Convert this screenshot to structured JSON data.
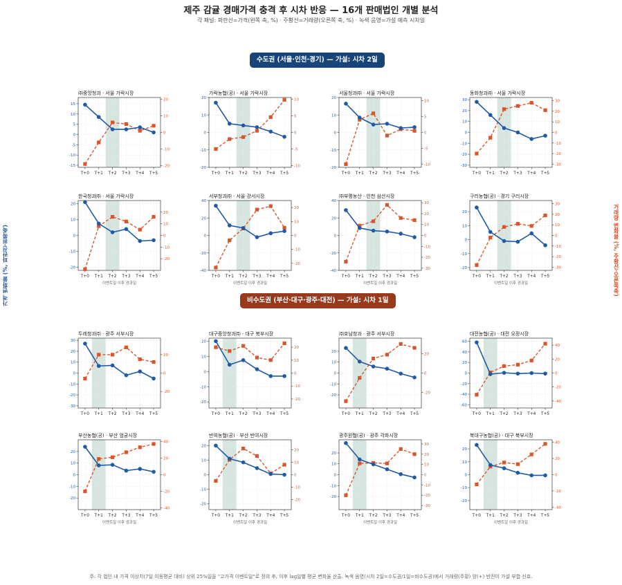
{
  "title": "제주 감귤 경매가격 충격 후 시차 반응 — 16개 판매법인 개별 분석",
  "subtitle": "각 패널: 파란선=가격(왼쪽 축, %) · 주황선=거래량(오른쪽 축, %) · 녹색 음영=가설 예측 시차일",
  "banners": {
    "metro": "수도권 (서울·인천·경기) — 가설: 시차 2일",
    "nonmetro": "비수도권 (부산·대구·광주·대전) — 가설: 시차 1일"
  },
  "left_axis_label": "가격 변화율 (%, 파란선·왼쪽축)",
  "right_axis_label": "거래량 변화율 (%, 주황선·오른쪽축)",
  "xlabel": "이벤트일 이후 경과일",
  "footnote": "주: 각 법인 내 가격 이상치(7일 이동평균 대비) 상위 25%일을 \"고가격 이벤트일\"로 정의 후, 이후 lag일별 평균 변화율 산출. 녹색 음영(시차 2일=수도권/1일=비수도권)에서 거래량(주황) 양(+) 반전이 가설 부합 신호.",
  "colors": {
    "price": "#1f5aa6",
    "volume": "#d9552a",
    "shade": "#cfe0d9"
  },
  "chart_data": {
    "type": "line",
    "x": [
      "T+0",
      "T+1",
      "T+2",
      "T+3",
      "T+4",
      "T+5"
    ],
    "grid": true,
    "panels": [
      {
        "title": "㈜중앙청과 · 서울 가락시장",
        "shade_lag": 2,
        "xlabel_shown": false,
        "left": {
          "range": [
            -16,
            18
          ],
          "ticks": [
            -15,
            -10,
            -5,
            0,
            5,
            10,
            15
          ]
        },
        "right": {
          "range": [
            -21,
            21
          ],
          "ticks": [
            -20,
            -10,
            0,
            10,
            20
          ]
        },
        "price": [
          14.5,
          8.5,
          2.5,
          2.5,
          3.5,
          1.0
        ],
        "volume": [
          -19,
          -6,
          6,
          5,
          1,
          4
        ]
      },
      {
        "title": "가락농협(공) · 서울 가락시장",
        "shade_lag": 2,
        "xlabel_shown": false,
        "left": {
          "range": [
            -20,
            20
          ],
          "ticks": [
            -20,
            -10,
            0,
            10,
            20
          ]
        },
        "right": {
          "range": [
            -10.5,
            10.5
          ],
          "ticks": [
            -10,
            -5,
            0,
            5,
            10
          ]
        },
        "price": [
          17,
          5,
          4,
          3,
          0.5,
          -2.5
        ],
        "volume": [
          -5,
          -2,
          -1.4,
          0.5,
          4.6,
          9.8
        ]
      },
      {
        "title": "서울청과㈜ · 서울 가락시장",
        "shade_lag": 2,
        "xlabel_shown": false,
        "left": {
          "range": [
            -20,
            20
          ],
          "ticks": [
            -20,
            -10,
            0,
            10,
            20
          ]
        },
        "right": {
          "range": [
            -11,
            11
          ],
          "ticks": [
            -10,
            -5,
            0,
            5,
            10
          ]
        },
        "price": [
          16.5,
          8.5,
          4.5,
          5,
          2.5,
          3
        ],
        "volume": [
          -10,
          4,
          6,
          -1,
          1,
          0.5
        ]
      },
      {
        "title": "동화청과㈜ · 서울 가락시장",
        "shade_lag": 2,
        "xlabel_shown": false,
        "left": {
          "range": [
            -32,
            32
          ],
          "ticks": [
            -30,
            -20,
            -10,
            0,
            10,
            20,
            30
          ]
        },
        "right": {
          "range": [
            -33,
            33
          ],
          "ticks": [
            -30,
            -20,
            -10,
            0,
            10,
            20,
            30
          ]
        },
        "price": [
          28,
          16,
          4,
          0,
          -6,
          -3
        ],
        "volume": [
          -20,
          -5,
          22,
          25,
          28,
          21
        ]
      },
      {
        "title": "한국청과㈜ · 서울 가락시장",
        "shade_lag": 2,
        "xlabel_shown": true,
        "left": {
          "range": [
            -22,
            22
          ],
          "ticks": [
            -20,
            -10,
            0,
            10,
            20
          ]
        },
        "right": {
          "range": [
            -30,
            30
          ],
          "ticks": [
            -20,
            -10,
            0,
            10,
            20
          ]
        },
        "price": [
          21,
          7.5,
          2,
          4,
          -3.5,
          -3
        ],
        "volume": [
          -29,
          8,
          16,
          12,
          5,
          16
        ]
      },
      {
        "title": "서부청과㈜ · 서울 강서시장",
        "shade_lag": 2,
        "xlabel_shown": true,
        "left": {
          "range": [
            -40,
            40
          ],
          "ticks": [
            -40,
            -20,
            0,
            20,
            40
          ]
        },
        "right": {
          "range": [
            -25,
            25
          ],
          "ticks": [
            -20,
            -10,
            0,
            10,
            20
          ]
        },
        "price": [
          34,
          11.5,
          8.5,
          -2,
          2.5,
          5
        ],
        "volume": [
          -23,
          -3.5,
          5,
          18.5,
          21,
          5.5
        ]
      },
      {
        "title": "㈜부평농산 · 인천 삼산시장",
        "shade_lag": 2,
        "xlabel_shown": true,
        "left": {
          "range": [
            -40,
            40
          ],
          "ticks": [
            -40,
            -20,
            0,
            20,
            40
          ]
        },
        "right": {
          "range": [
            -32,
            32
          ],
          "ticks": [
            -30,
            -20,
            -10,
            0,
            10,
            20,
            30
          ]
        },
        "price": [
          29,
          8.5,
          5.5,
          4.5,
          2,
          -2
        ],
        "volume": [
          -24,
          9,
          13,
          28,
          16,
          14
        ]
      },
      {
        "title": "구리농협(공) · 경기 구리시장",
        "shade_lag": 2,
        "xlabel_shown": true,
        "left": {
          "range": [
            -22,
            28
          ],
          "ticks": [
            -20,
            -10,
            0,
            10,
            20
          ]
        },
        "right": {
          "range": [
            -33,
            33
          ],
          "ticks": [
            -30,
            -20,
            -10,
            0,
            10,
            20,
            30
          ]
        },
        "price": [
          23,
          5.5,
          -1,
          -1.5,
          4.5,
          -4
        ],
        "volume": [
          -28,
          -2,
          8,
          11,
          9,
          19
        ]
      },
      {
        "title": "두레청과㈜ · 광주 서부시장",
        "shade_lag": 1,
        "xlabel_shown": false,
        "left": {
          "range": [
            -32,
            32
          ],
          "ticks": [
            -30,
            -20,
            -10,
            0,
            10,
            20,
            30
          ]
        },
        "right": {
          "range": [
            -38,
            38
          ],
          "ticks": [
            -20,
            0,
            20
          ]
        },
        "price": [
          27,
          6.5,
          7,
          -2,
          1.5,
          -5
        ],
        "volume": [
          -6,
          20,
          20,
          28,
          15,
          12
        ]
      },
      {
        "title": "대구중앙청과㈜ · 대구 북부시장",
        "shade_lag": 1,
        "xlabel_shown": false,
        "left": {
          "range": [
            -24,
            22
          ],
          "ticks": [
            -20,
            -10,
            0,
            10,
            20
          ]
        },
        "right": {
          "range": [
            -27,
            27
          ],
          "ticks": [
            -20,
            -10,
            0,
            10,
            20
          ]
        },
        "price": [
          20,
          4.5,
          7.5,
          1.5,
          -3,
          -3
        ],
        "volume": [
          20,
          17,
          21,
          12,
          10,
          23
        ]
      },
      {
        "title": "㈜호남청과 · 광주 서부시장",
        "shade_lag": 1,
        "xlabel_shown": false,
        "left": {
          "range": [
            -32,
            32
          ],
          "ticks": [
            -20,
            -10,
            0,
            10,
            20
          ]
        },
        "right": {
          "range": [
            -36,
            36
          ],
          "ticks": [
            -20,
            0,
            20
          ]
        },
        "price": [
          23,
          10.5,
          6,
          4,
          -0.5,
          -4
        ],
        "volume": [
          -29,
          -5,
          15,
          19,
          30,
          26
        ]
      },
      {
        "title": "대전농협(공) · 대전 오정시장",
        "shade_lag": 1,
        "xlabel_shown": false,
        "left": {
          "range": [
            -66,
            66
          ],
          "ticks": [
            -60,
            -40,
            -20,
            0,
            20,
            40,
            60
          ]
        },
        "right": {
          "range": [
            -50,
            50
          ],
          "ticks": [
            -40,
            -20,
            0,
            20,
            40
          ]
        },
        "price": [
          58,
          -2,
          0.5,
          -1,
          0,
          -1
        ],
        "volume": [
          -31,
          1,
          10,
          12,
          18,
          42
        ]
      },
      {
        "title": "부산농협(공) · 부산 엄궁시장",
        "shade_lag": 1,
        "xlabel_shown": true,
        "left": {
          "range": [
            -30,
            30
          ],
          "ticks": [
            -20,
            -10,
            0,
            10,
            20
          ]
        },
        "right": {
          "range": [
            -42,
            42
          ],
          "ticks": [
            -40,
            -20,
            0,
            20,
            40
          ]
        },
        "price": [
          24,
          8,
          8.5,
          3.5,
          5,
          2.5
        ],
        "volume": [
          -20,
          19,
          21,
          27,
          33,
          37
        ]
      },
      {
        "title": "반여농협(공) · 부산 반여시장",
        "shade_lag": 1,
        "xlabel_shown": true,
        "left": {
          "range": [
            -24,
            24
          ],
          "ticks": [
            -20,
            -10,
            0,
            10,
            20
          ]
        },
        "right": {
          "range": [
            -28,
            28
          ],
          "ticks": [
            -20,
            -10,
            0,
            10,
            20
          ]
        },
        "price": [
          20,
          11,
          8.5,
          4.5,
          0.5,
          0
        ],
        "volume": [
          -5,
          12,
          21,
          15,
          1,
          8
        ]
      },
      {
        "title": "광주원협(공) · 광주 각화시장",
        "shade_lag": 1,
        "xlabel_shown": true,
        "left": {
          "range": [
            -32,
            32
          ],
          "ticks": [
            -20,
            -10,
            0,
            10,
            20
          ]
        },
        "right": {
          "range": [
            -34,
            34
          ],
          "ticks": [
            -30,
            -20,
            -10,
            0,
            10,
            20,
            30
          ]
        },
        "price": [
          29,
          14,
          9.5,
          5,
          0.5,
          -2.5
        ],
        "volume": [
          -20,
          11,
          11.5,
          11,
          25,
          20
        ]
      },
      {
        "title": "북대구농협(공) · 대구 북부시장",
        "shade_lag": 1,
        "xlabel_shown": true,
        "left": {
          "range": [
            -27,
            27
          ],
          "ticks": [
            -20,
            -10,
            0,
            10,
            20
          ]
        },
        "right": {
          "range": [
            -43,
            43
          ],
          "ticks": [
            -40,
            -20,
            0,
            20,
            40
          ]
        },
        "price": [
          23,
          7.5,
          5,
          1.5,
          -0.5,
          -0.5
        ],
        "volume": [
          -12,
          10,
          15,
          13,
          25,
          38
        ]
      }
    ]
  }
}
